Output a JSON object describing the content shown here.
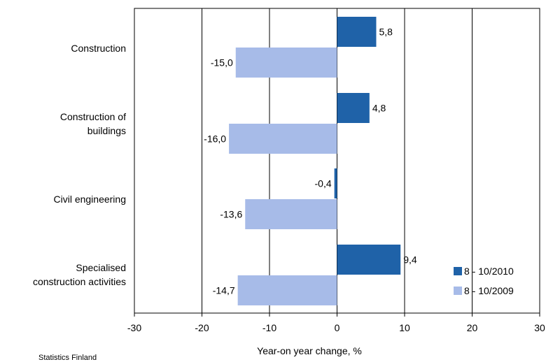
{
  "chart_data": {
    "type": "bar",
    "orientation": "horizontal",
    "categories": [
      [
        "Construction"
      ],
      [
        "Construction of",
        "buildings"
      ],
      [
        "Civil engineering"
      ],
      [
        "Specialised",
        "construction activities"
      ]
    ],
    "series": [
      {
        "name": "8 - 10/2010",
        "values": [
          5.8,
          4.8,
          -0.4,
          9.4
        ],
        "labels": [
          "5,8",
          "4,8",
          "-0,4",
          "9,4"
        ],
        "color": "#1f62a8"
      },
      {
        "name": "8 - 10/2009",
        "values": [
          -15.0,
          -16.0,
          -13.6,
          -14.7
        ],
        "labels": [
          "-15,0",
          "-16,0",
          "-13,6",
          "-14,7"
        ],
        "color": "#a7bbe8"
      }
    ],
    "xlim": [
      -30,
      30
    ],
    "xticks": [
      -30,
      -20,
      -10,
      0,
      10,
      20,
      30
    ],
    "xtick_labels": [
      "-30",
      "-20",
      "-10",
      "0",
      "10",
      "20",
      "30"
    ],
    "xlabel": "Year-on year change, %",
    "grid": "vertical",
    "legend_position": "bottom-right"
  },
  "footer": {
    "source": "Statistics Finland"
  }
}
